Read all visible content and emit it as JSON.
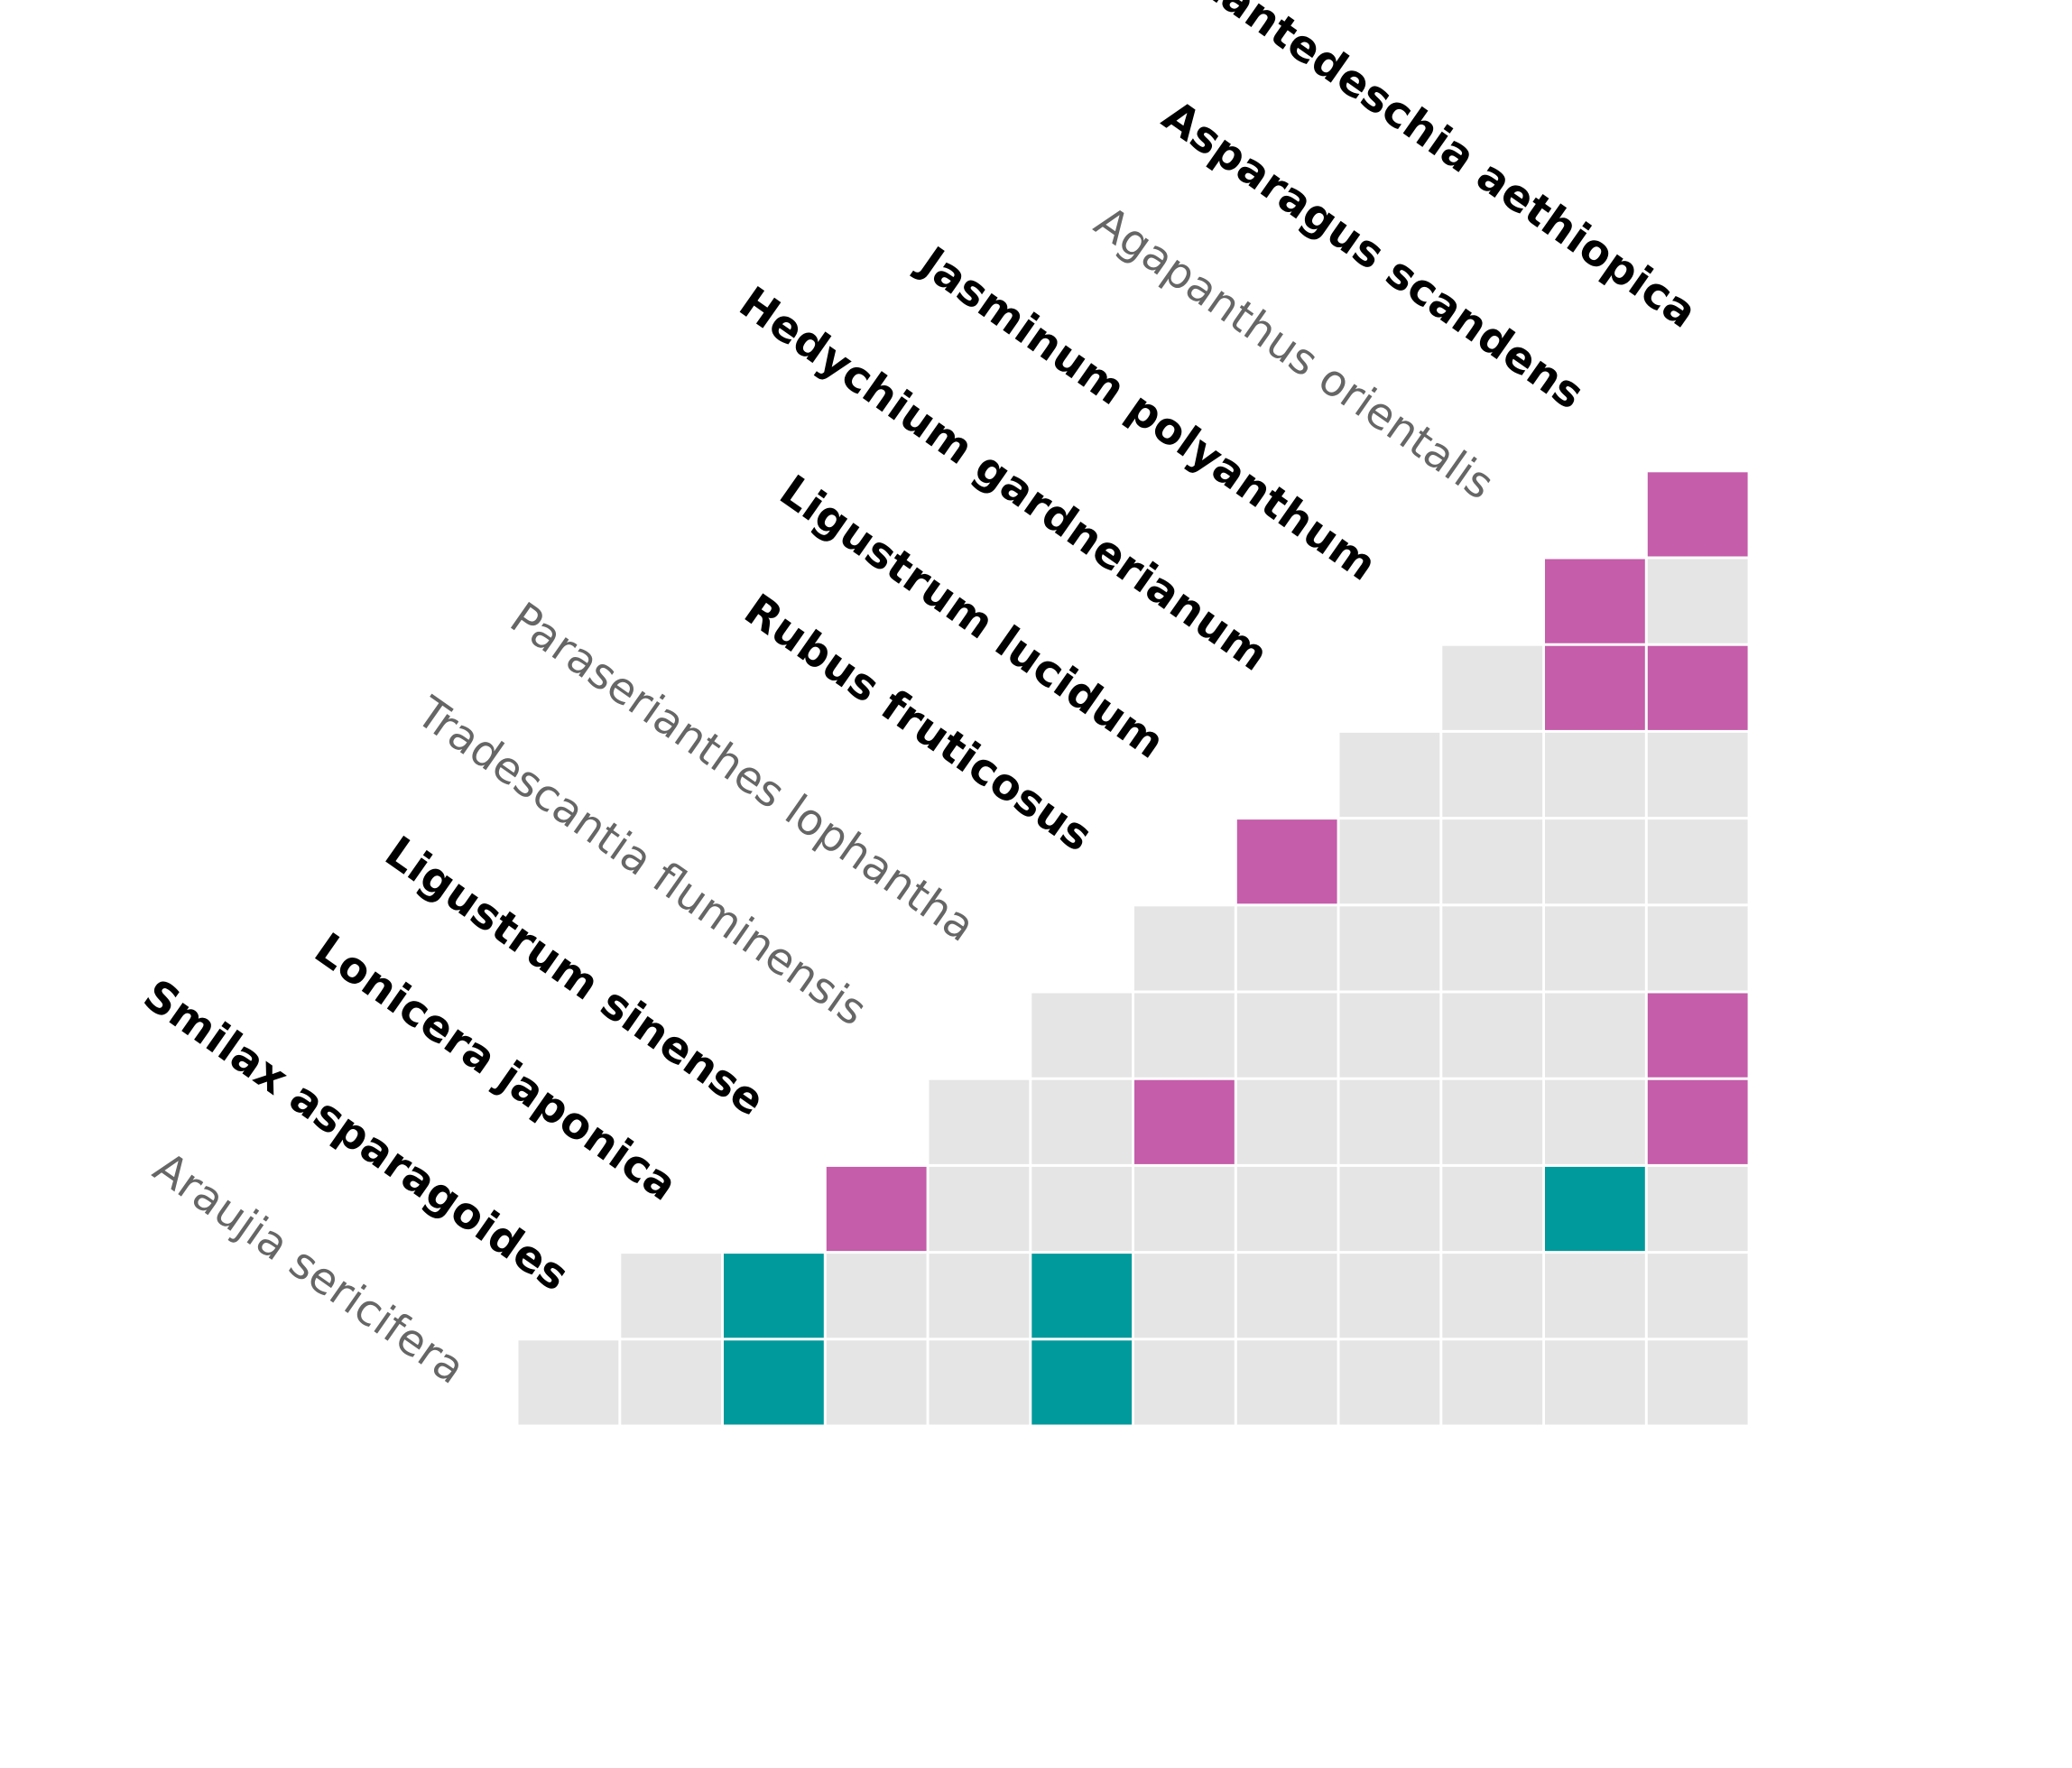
{
  "chart_data": {
    "type": "heatmap",
    "species": [
      {
        "name": "Araujia sericifera",
        "bold": false
      },
      {
        "name": "Smilax asparagoides",
        "bold": true
      },
      {
        "name": "Lonicera japonica",
        "bold": true
      },
      {
        "name": "Ligustrum sinense",
        "bold": true
      },
      {
        "name": "Tradescantia fluminensis",
        "bold": false
      },
      {
        "name": "Paraserianthes lophantha",
        "bold": false
      },
      {
        "name": "Rubus fruticosus",
        "bold": true
      },
      {
        "name": "Ligustrum lucidum",
        "bold": true
      },
      {
        "name": "Hedychium gardnerianum",
        "bold": true
      },
      {
        "name": "Jasminum polyanthum",
        "bold": true
      },
      {
        "name": "Agapanthus orientalis",
        "bold": false
      },
      {
        "name": "Asparagus scandens",
        "bold": true
      },
      {
        "name": "Zantedeschia aethiopica",
        "bold": true
      }
    ],
    "rows": [
      [
        0,
        0,
        2,
        0,
        0,
        2,
        0,
        0,
        0,
        0,
        0,
        0
      ],
      [
        0,
        2,
        0,
        0,
        2,
        0,
        0,
        0,
        0,
        0,
        0
      ],
      [
        1,
        0,
        0,
        0,
        0,
        0,
        0,
        2,
        0
      ],
      [
        0,
        0,
        1,
        0,
        0,
        0,
        0,
        1
      ],
      [
        0,
        0,
        0,
        0,
        0,
        0,
        1
      ],
      [
        0,
        0,
        0,
        0,
        0,
        0
      ],
      [
        1,
        0,
        0,
        0,
        0
      ],
      [
        0,
        0,
        0,
        0
      ],
      [
        0,
        1,
        1
      ],
      [
        1,
        0
      ],
      [
        1
      ]
    ],
    "colors": {
      "empty": "#E5E5E5",
      "magenta": "#C55DAA",
      "teal": "#009A9C",
      "label_bold": "#000000",
      "label_regular": "#666666"
    }
  }
}
